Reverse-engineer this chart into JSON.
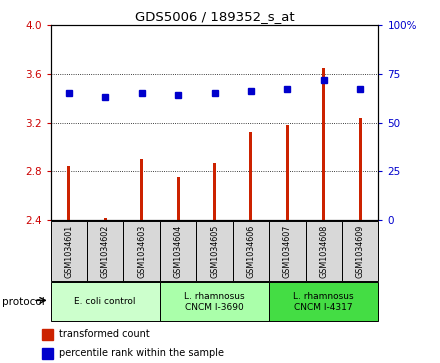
{
  "title": "GDS5006 / 189352_s_at",
  "samples": [
    "GSM1034601",
    "GSM1034602",
    "GSM1034603",
    "GSM1034604",
    "GSM1034605",
    "GSM1034606",
    "GSM1034607",
    "GSM1034608",
    "GSM1034609"
  ],
  "transformed_counts": [
    2.84,
    2.41,
    2.9,
    2.75,
    2.87,
    3.12,
    3.18,
    3.65,
    3.24
  ],
  "percentile_ranks": [
    65,
    63,
    65,
    64,
    65,
    66,
    67,
    72,
    67
  ],
  "ylim_left": [
    2.4,
    4.0
  ],
  "ylim_right": [
    0,
    100
  ],
  "yticks_left": [
    2.4,
    2.8,
    3.2,
    3.6,
    4.0
  ],
  "yticks_right": [
    0,
    25,
    50,
    75,
    100
  ],
  "bar_color": "#cc2200",
  "dot_color": "#0000cc",
  "grid_color": "#000000",
  "protocol_groups": [
    {
      "label": "E. coli control",
      "start": 0,
      "end": 3,
      "color": "#ccffcc"
    },
    {
      "label": "L. rhamnosus\nCNCM I-3690",
      "start": 3,
      "end": 6,
      "color": "#aaffaa"
    },
    {
      "label": "L. rhamnosus\nCNCM I-4317",
      "start": 6,
      "end": 9,
      "color": "#44dd44"
    }
  ],
  "legend_bar_label": "transformed count",
  "legend_dot_label": "percentile rank within the sample",
  "protocol_label": "protocol",
  "tick_label_color_left": "#cc0000",
  "tick_label_color_right": "#0000cc",
  "bar_width": 0.08,
  "base_value": 2.4
}
